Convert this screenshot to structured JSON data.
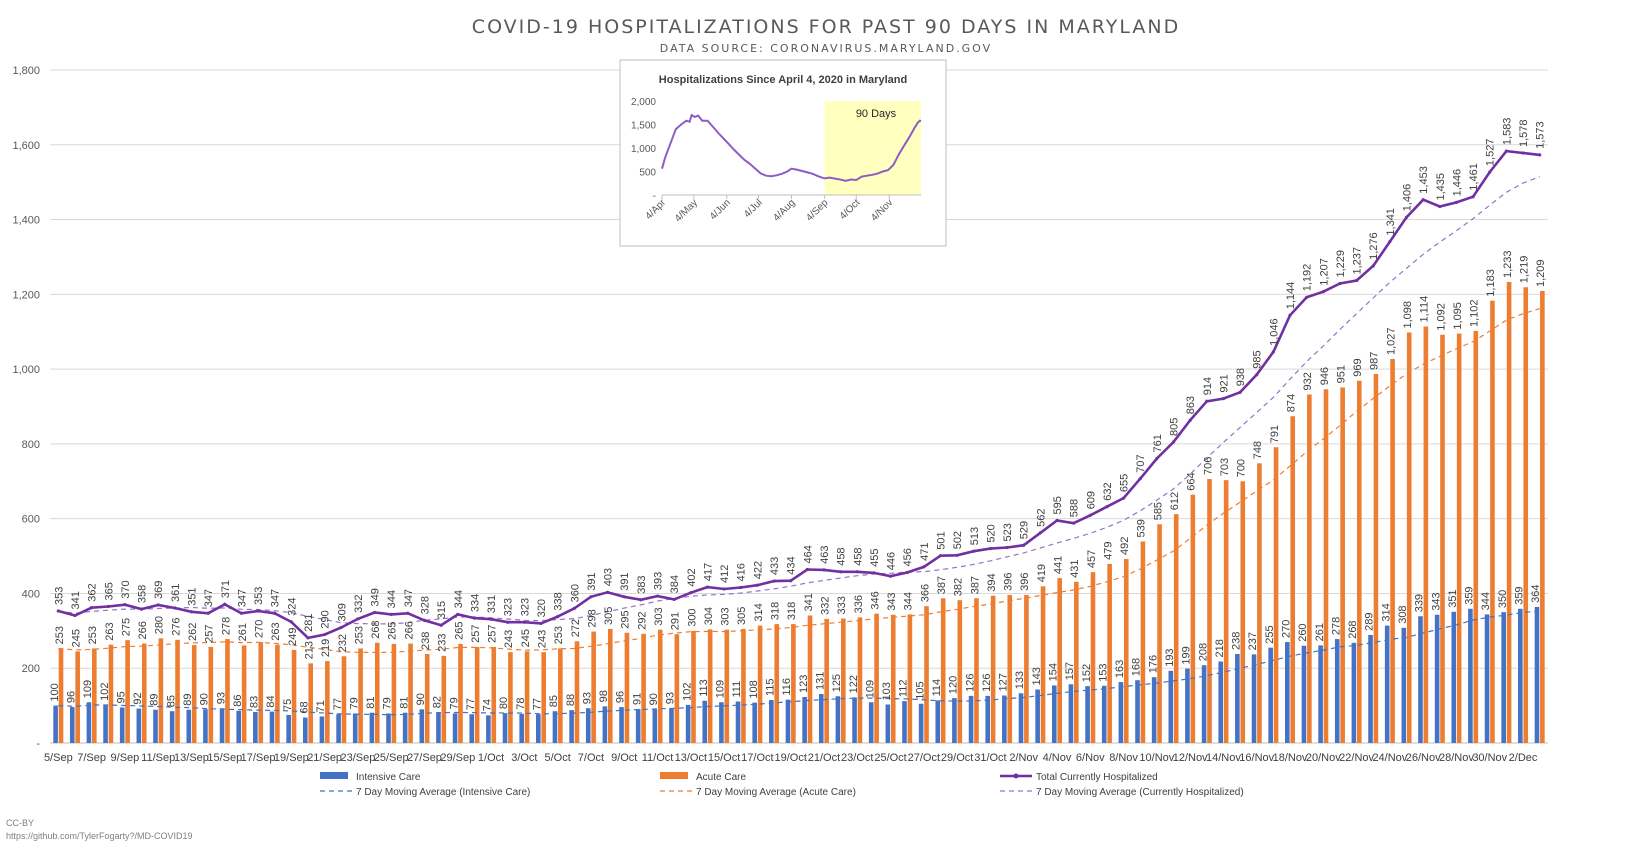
{
  "title": "COVID-19 HOSPITALIZATIONS FOR PAST 90 DAYS IN MARYLAND",
  "subtitle": "DATA SOURCE: CORONAVIRUS.MARYLAND.GOV",
  "credit_license": "CC-BY",
  "credit_url": "https://github.com/TylerFogarty?/MD-COVID19",
  "colors": {
    "icu": "#4472C4",
    "acute": "#ED7D31",
    "total": "#7030A0",
    "total_avg": "#9673C8",
    "grid": "#d9d9d9",
    "inset_highlight": "#FFFFC0"
  },
  "chart_data": [
    {
      "type": "bar",
      "ylim": [
        0,
        1800
      ],
      "yticks": [
        0,
        200,
        400,
        600,
        800,
        1000,
        1200,
        1400,
        1600,
        1800
      ],
      "ytick_labels": [
        "-",
        "200",
        "400",
        "600",
        "800",
        "1,000",
        "1,200",
        "1,400",
        "1,600",
        "1,800"
      ],
      "x_tick_labels": [
        "5/Sep",
        "7/Sep",
        "9/Sep",
        "11/Sep",
        "13/Sep",
        "15/Sep",
        "17/Sep",
        "19/Sep",
        "21/Sep",
        "23/Sep",
        "25/Sep",
        "27/Sep",
        "29/Sep",
        "1/Oct",
        "3/Oct",
        "5/Oct",
        "7/Oct",
        "9/Oct",
        "11/Oct",
        "13/Oct",
        "15/Oct",
        "17/Oct",
        "19/Oct",
        "21/Oct",
        "23/Oct",
        "25/Oct",
        "27/Oct",
        "29/Oct",
        "31/Oct",
        "2/Nov",
        "4/Nov",
        "6/Nov",
        "8/Nov",
        "10/Nov",
        "12/Nov",
        "14/Nov",
        "16/Nov",
        "18/Nov",
        "20/Nov",
        "22/Nov",
        "24/Nov",
        "26/Nov",
        "28/Nov",
        "30/Nov",
        "2/Dec"
      ],
      "series": [
        {
          "name": "Intensive Care",
          "type": "bar",
          "values": [
            100,
            96,
            109,
            102,
            95,
            92,
            89,
            85,
            89,
            90,
            93,
            86,
            83,
            84,
            75,
            68,
            71,
            77,
            79,
            81,
            79,
            81,
            90,
            82,
            79,
            77,
            74,
            80,
            78,
            77,
            85,
            88,
            93,
            98,
            96,
            91,
            90,
            93,
            102,
            113,
            109,
            111,
            108,
            115,
            116,
            123,
            131,
            125,
            122,
            109,
            103,
            112,
            105,
            114,
            120,
            126,
            126,
            127,
            133,
            143,
            154,
            157,
            152,
            153,
            163,
            168,
            176,
            193,
            199,
            208,
            218,
            238,
            237,
            255,
            270,
            260,
            261,
            278,
            268,
            289,
            314,
            308,
            339,
            343,
            351,
            359,
            344,
            350,
            359,
            364
          ]
        },
        {
          "name": "Acute Care",
          "type": "bar",
          "values": [
            253,
            245,
            253,
            263,
            275,
            266,
            280,
            276,
            262,
            257,
            278,
            261,
            270,
            263,
            249,
            213,
            219,
            232,
            253,
            268,
            265,
            266,
            238,
            233,
            265,
            257,
            257,
            243,
            245,
            243,
            253,
            272,
            298,
            305,
            295,
            292,
            303,
            291,
            300,
            304,
            303,
            305,
            314,
            318,
            318,
            341,
            332,
            333,
            336,
            346,
            343,
            344,
            366,
            387,
            382,
            387,
            394,
            396,
            396,
            419,
            441,
            431,
            457,
            479,
            492,
            539,
            585,
            612,
            664,
            706,
            703,
            700,
            748,
            791,
            874,
            932,
            946,
            951,
            969,
            987,
            1027,
            1098,
            1114,
            1092,
            1095,
            1102,
            1183,
            1233,
            1219,
            1209
          ]
        },
        {
          "name": "Total Currently Hospitalized",
          "type": "line",
          "values": [
            353,
            341,
            362,
            365,
            370,
            358,
            369,
            361,
            351,
            347,
            371,
            347,
            353,
            347,
            324,
            281,
            290,
            309,
            332,
            349,
            344,
            347,
            328,
            315,
            344,
            334,
            331,
            323,
            323,
            320,
            338,
            360,
            391,
            403,
            391,
            383,
            393,
            384,
            402,
            417,
            412,
            416,
            422,
            433,
            434,
            464,
            463,
            458,
            458,
            455,
            446,
            456,
            471,
            501,
            502,
            513,
            520,
            523,
            529,
            562,
            595,
            588,
            609,
            632,
            655,
            707,
            761,
            805,
            863,
            914,
            921,
            938,
            985,
            1046,
            1144,
            1192,
            1207,
            1229,
            1237,
            1276,
            1341,
            1406,
            1453,
            1435,
            1446,
            1461,
            1527,
            1583,
            1578,
            1573
          ]
        },
        {
          "name": "7 Day Moving Average (Intensive Care)",
          "type": "dashed"
        },
        {
          "name": "7 Day Moving Average (Acute Care)",
          "type": "dashed"
        },
        {
          "name": "7 Day Moving Average (Currently Hospitalized)",
          "type": "dashed"
        }
      ]
    },
    {
      "type": "line",
      "title": "Hospitalizations Since April 4, 2020 in Maryland",
      "ylim": [
        0,
        2000
      ],
      "ytick_labels": [
        "-",
        "500",
        "1,000",
        "1,500",
        "2,000"
      ],
      "x_tick_labels": [
        "4/Apr",
        "4/May",
        "4/Jun",
        "4/Jul",
        "4/Aug",
        "4/Sep",
        "4/Oct",
        "4/Nov"
      ],
      "annotation": "90 Days",
      "highlight_start": "4/Sep",
      "points": [
        [
          "4/Apr",
          560
        ],
        [
          "7/Apr",
          800
        ],
        [
          "12/Apr",
          1100
        ],
        [
          "17/Apr",
          1400
        ],
        [
          "22/Apr",
          1500
        ],
        [
          "27/Apr",
          1580
        ],
        [
          "30/Apr",
          1560
        ],
        [
          "2/May",
          1700
        ],
        [
          "5/May",
          1660
        ],
        [
          "8/May",
          1690
        ],
        [
          "12/May",
          1580
        ],
        [
          "17/May",
          1580
        ],
        [
          "22/May",
          1450
        ],
        [
          "27/May",
          1320
        ],
        [
          "1/Jun",
          1200
        ],
        [
          "6/Jun",
          1080
        ],
        [
          "11/Jun",
          960
        ],
        [
          "16/Jun",
          850
        ],
        [
          "21/Jun",
          740
        ],
        [
          "26/Jun",
          660
        ],
        [
          "1/Jul",
          560
        ],
        [
          "6/Jul",
          460
        ],
        [
          "11/Jul",
          410
        ],
        [
          "16/Jul",
          400
        ],
        [
          "21/Jul",
          420
        ],
        [
          "26/Jul",
          450
        ],
        [
          "31/Jul",
          500
        ],
        [
          "4/Aug",
          560
        ],
        [
          "9/Aug",
          540
        ],
        [
          "14/Aug",
          510
        ],
        [
          "19/Aug",
          480
        ],
        [
          "24/Aug",
          450
        ],
        [
          "29/Aug",
          400
        ],
        [
          "4/Sep",
          353
        ],
        [
          "9/Sep",
          370
        ],
        [
          "14/Sep",
          350
        ],
        [
          "19/Sep",
          330
        ],
        [
          "24/Sep",
          300
        ],
        [
          "29/Sep",
          330
        ],
        [
          "4/Oct",
          320
        ],
        [
          "9/Oct",
          390
        ],
        [
          "14/Oct",
          410
        ],
        [
          "19/Oct",
          430
        ],
        [
          "24/Oct",
          455
        ],
        [
          "29/Oct",
          500
        ],
        [
          "3/Nov",
          530
        ],
        [
          "8/Nov",
          640
        ],
        [
          "13/Nov",
          860
        ],
        [
          "18/Nov",
          1050
        ],
        [
          "23/Nov",
          1230
        ],
        [
          "28/Nov",
          1430
        ],
        [
          "1/Dec",
          1540
        ],
        [
          "3/Dec",
          1580
        ],
        [
          "4/Dec",
          1573
        ]
      ]
    }
  ]
}
